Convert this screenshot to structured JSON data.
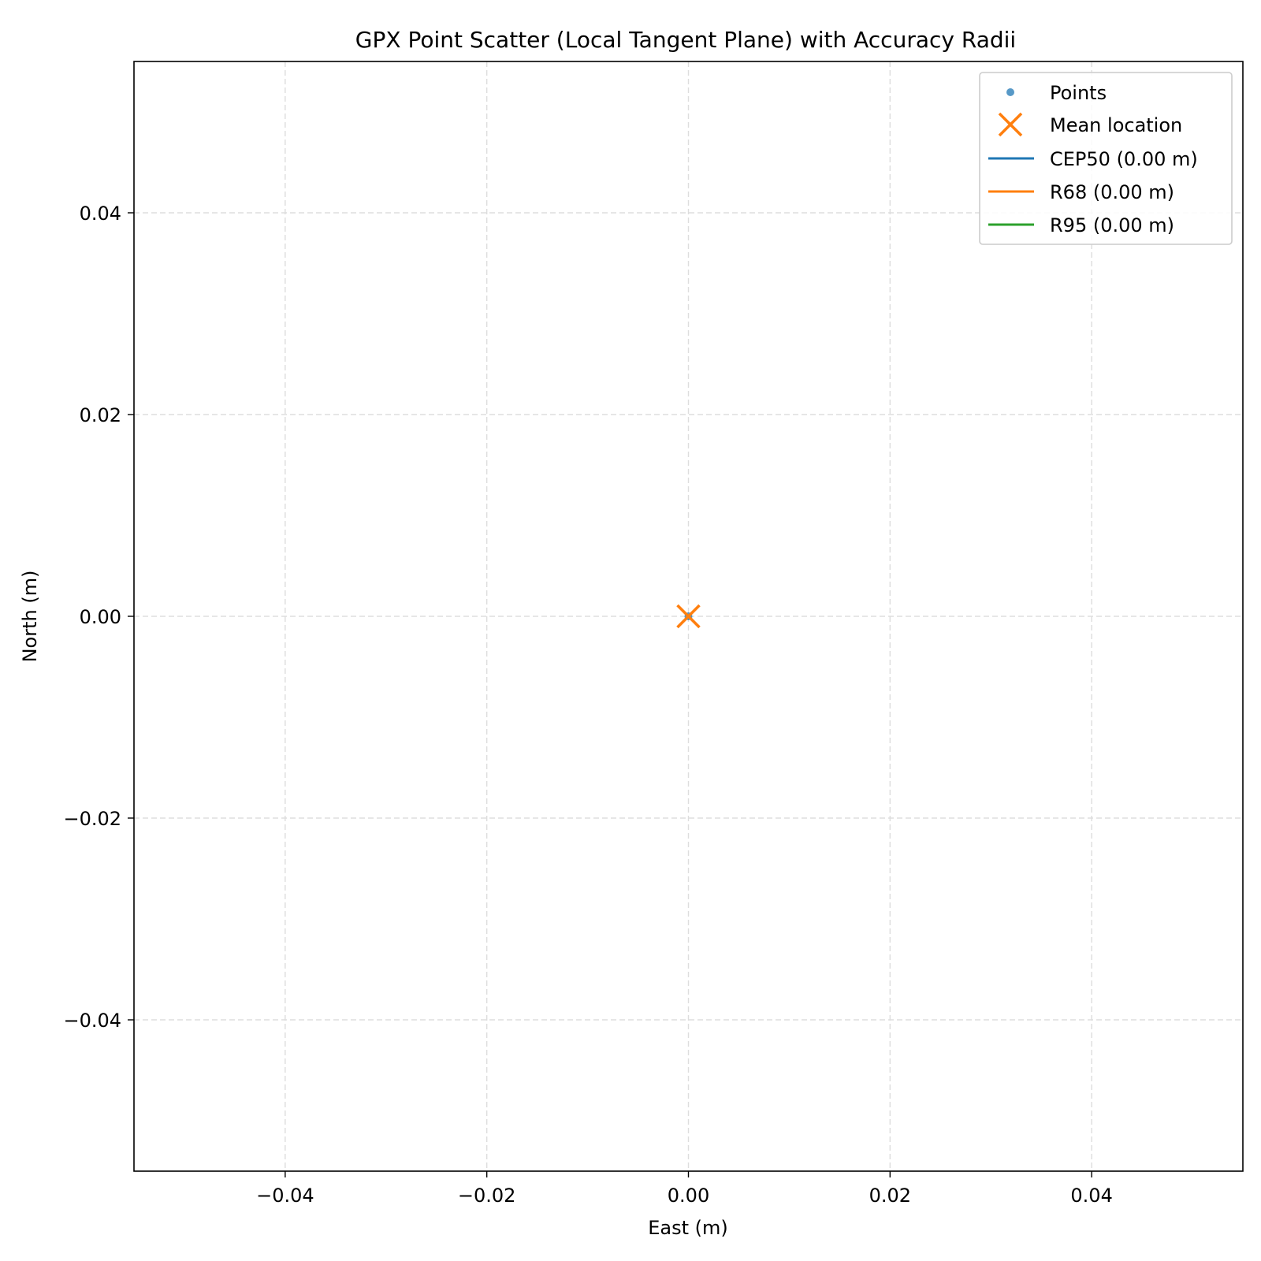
{
  "chart_data": {
    "type": "scatter",
    "title": "GPX Point Scatter (Local Tangent Plane) with Accuracy Radii",
    "xlabel": "East (m)",
    "ylabel": "North (m)",
    "xlim": [
      -0.055,
      0.055
    ],
    "ylim": [
      -0.055,
      0.055
    ],
    "xticks": [
      -0.04,
      -0.02,
      0.0,
      0.02,
      0.04
    ],
    "yticks": [
      -0.04,
      -0.02,
      0.0,
      0.02,
      0.04
    ],
    "xtick_labels": [
      "−0.04",
      "−0.02",
      "0.00",
      "0.02",
      "0.04"
    ],
    "ytick_labels": [
      "−0.04",
      "−0.02",
      "0.00",
      "0.02",
      "0.04"
    ],
    "grid": true,
    "grid_style": "dashed",
    "legend_position": "top-right",
    "series": [
      {
        "name": "Points",
        "kind": "points",
        "color": "#1f77b4",
        "points": [
          [
            0.0,
            0.0
          ]
        ]
      },
      {
        "name": "Mean location",
        "kind": "marker-x",
        "color": "#ff7f0e",
        "points": [
          [
            0.0,
            0.0
          ]
        ]
      },
      {
        "name": "CEP50 (0.00 m)",
        "kind": "circle",
        "color": "#1f77b4",
        "center": [
          0.0,
          0.0
        ],
        "radius": 0.0
      },
      {
        "name": "R68 (0.00 m)",
        "kind": "circle",
        "color": "#ff7f0e",
        "center": [
          0.0,
          0.0
        ],
        "radius": 0.0
      },
      {
        "name": "R95 (0.00 m)",
        "kind": "circle",
        "color": "#2ca02c",
        "center": [
          0.0,
          0.0
        ],
        "radius": 0.0
      }
    ]
  }
}
